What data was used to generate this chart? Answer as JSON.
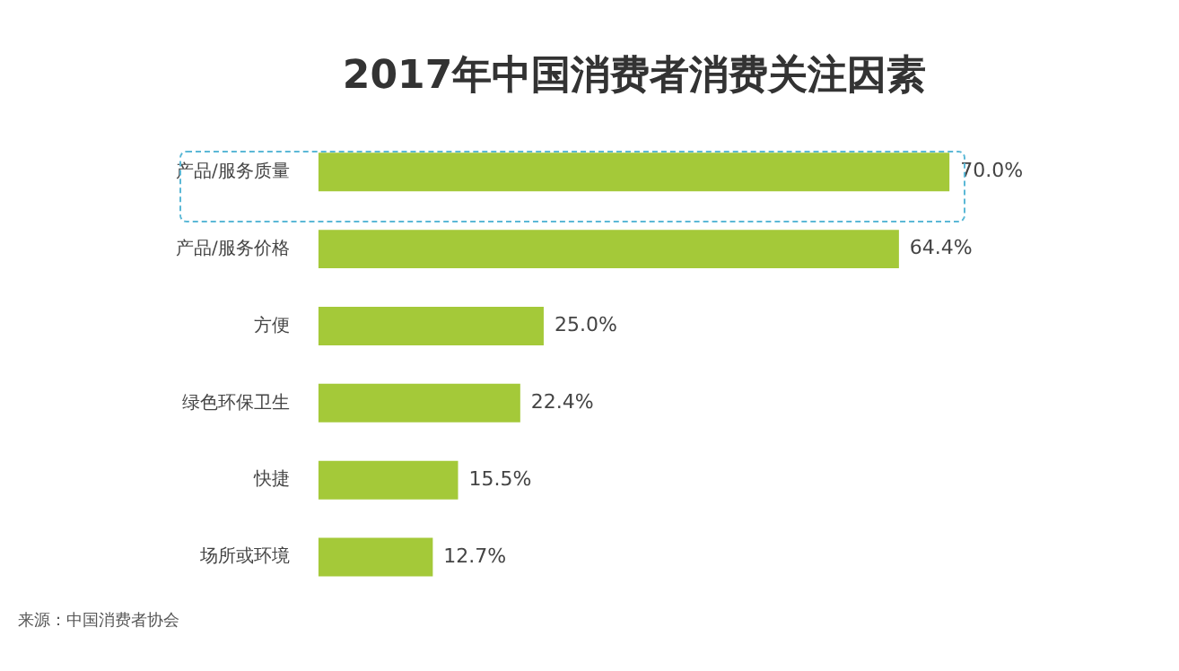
{
  "chart_data": {
    "type": "bar",
    "orientation": "horizontal",
    "title": "2017年中国消费者消费关注因素",
    "categories": [
      "产品/服务质量",
      "产品/服务价格",
      "方便",
      "绿色环保卫生",
      "快捷",
      "场所或环境"
    ],
    "values": [
      70.0,
      64.4,
      25.0,
      22.4,
      15.5,
      12.7
    ],
    "value_labels": [
      "70.0%",
      "64.4%",
      "25.0%",
      "22.4%",
      "15.5%",
      "12.7%"
    ],
    "color": "#a4c939",
    "annotations": [
      "来源：中国消费者协会"
    ]
  }
}
